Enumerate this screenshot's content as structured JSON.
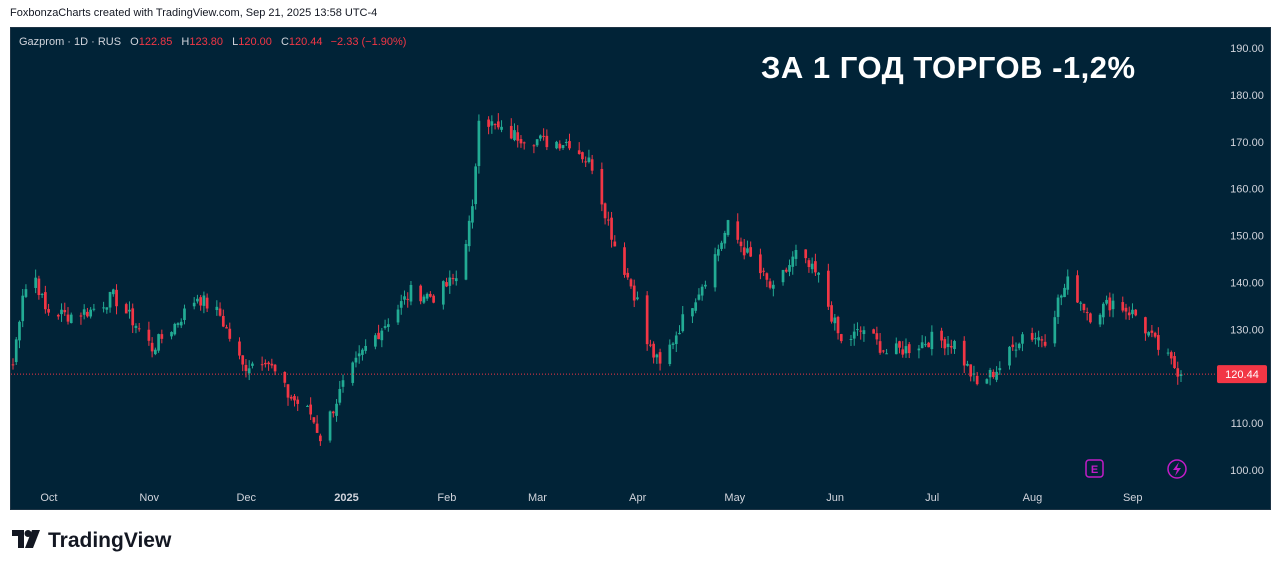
{
  "header": {
    "credit": "FoxbonzaCharts created with TradingView.com, Sep 21, 2025 13:58 UTC-4"
  },
  "legend": {
    "symbol": "Gazprom · 1D · RUS",
    "open_key": "O",
    "open": "122.85",
    "high_key": "H",
    "high": "123.80",
    "low_key": "L",
    "low": "120.00",
    "close_key": "C",
    "close": "120.44",
    "change": "−2.33 (−1.90%)"
  },
  "headline": "ЗА 1 ГОД ТОРГОВ -1,2%",
  "footer": {
    "brand": "TradingView"
  },
  "colors": {
    "up": "#22ab94",
    "down": "#f23645",
    "background": "#012337",
    "last_price": "#f23645",
    "marker": "#c21cc7"
  },
  "icons": [
    "earnings-icon",
    "lightning-icon"
  ],
  "chart_data": {
    "type": "candlestick",
    "title": "Gazprom · 1D · RUS",
    "y_axis_ticks": [
      "190.00",
      "180.00",
      "170.00",
      "160.00",
      "150.00",
      "140.00",
      "130.00",
      "120.00",
      "110.00",
      "100.00"
    ],
    "ylim": [
      97,
      195
    ],
    "x_axis_ticks": [
      "Oct",
      "Nov",
      "Dec",
      "2025",
      "Feb",
      "Mar",
      "Apr",
      "May",
      "Jun",
      "Jul",
      "Aug",
      "Sep"
    ],
    "last_price_label": "120.44",
    "last_price": 120.44,
    "grid": false,
    "series_close_approx": [
      [
        "2024-09-23",
        122.5
      ],
      [
        "2024-09-26",
        138
      ],
      [
        "2024-09-30",
        141
      ],
      [
        "2024-10-03",
        134
      ],
      [
        "2024-10-10",
        133
      ],
      [
        "2024-10-17",
        134
      ],
      [
        "2024-10-24",
        137
      ],
      [
        "2024-10-31",
        131
      ],
      [
        "2024-11-05",
        126
      ],
      [
        "2024-11-12",
        131
      ],
      [
        "2024-11-19",
        137
      ],
      [
        "2024-11-26",
        133
      ],
      [
        "2024-12-03",
        122
      ],
      [
        "2024-12-10",
        124
      ],
      [
        "2024-12-17",
        116
      ],
      [
        "2024-12-24",
        112
      ],
      [
        "2024-12-27",
        107
      ],
      [
        "2025-01-03",
        118
      ],
      [
        "2025-01-10",
        126
      ],
      [
        "2025-01-17",
        132
      ],
      [
        "2025-01-24",
        138
      ],
      [
        "2025-01-31",
        137
      ],
      [
        "2025-02-07",
        141
      ],
      [
        "2025-02-12",
        155
      ],
      [
        "2025-02-14",
        176
      ],
      [
        "2025-02-21",
        172
      ],
      [
        "2025-02-28",
        171
      ],
      [
        "2025-03-07",
        170
      ],
      [
        "2025-03-14",
        170
      ],
      [
        "2025-03-21",
        165
      ],
      [
        "2025-03-28",
        148
      ],
      [
        "2025-04-04",
        136
      ],
      [
        "2025-04-07",
        127
      ],
      [
        "2025-04-11",
        122
      ],
      [
        "2025-04-18",
        132
      ],
      [
        "2025-04-25",
        141
      ],
      [
        "2025-05-02",
        152
      ],
      [
        "2025-05-09",
        145
      ],
      [
        "2025-05-16",
        138
      ],
      [
        "2025-05-23",
        146
      ],
      [
        "2025-05-30",
        141
      ],
      [
        "2025-06-06",
        127
      ],
      [
        "2025-06-13",
        130
      ],
      [
        "2025-06-20",
        125
      ],
      [
        "2025-06-27",
        126
      ],
      [
        "2025-07-04",
        128
      ],
      [
        "2025-07-11",
        127
      ],
      [
        "2025-07-18",
        118
      ],
      [
        "2025-07-25",
        122
      ],
      [
        "2025-08-01",
        129
      ],
      [
        "2025-08-08",
        128
      ],
      [
        "2025-08-12",
        136
      ],
      [
        "2025-08-15",
        140
      ],
      [
        "2025-08-22",
        133
      ],
      [
        "2025-08-29",
        136
      ],
      [
        "2025-09-05",
        133
      ],
      [
        "2025-09-12",
        126
      ],
      [
        "2025-09-19",
        120.44
      ]
    ]
  }
}
